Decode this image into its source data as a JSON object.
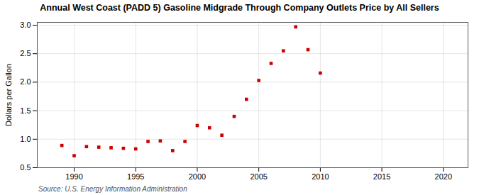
{
  "chart_data": {
    "type": "scatter",
    "title": "Annual West Coast (PADD 5) Gasoline Midgrade Through Company Outlets Price by All Sellers",
    "ylabel": "Dollars per Gallon",
    "source": "Source: U.S. Energy Information Administration",
    "color": "#cc0000",
    "marker": "square",
    "x": [
      1989,
      1990,
      1991,
      1992,
      1993,
      1994,
      1995,
      1996,
      1997,
      1998,
      1999,
      2000,
      2001,
      2002,
      2003,
      2004,
      2005,
      2006,
      2007,
      2008,
      2009,
      2010
    ],
    "values": [
      0.89,
      0.71,
      0.87,
      0.86,
      0.85,
      0.84,
      0.83,
      0.96,
      0.97,
      0.8,
      0.96,
      1.24,
      1.2,
      1.07,
      1.4,
      1.7,
      2.03,
      2.33,
      2.55,
      2.97,
      2.57,
      2.16
    ],
    "xlim": [
      1987,
      2022
    ],
    "ylim": [
      0.5,
      3.05
    ],
    "xticks": [
      1990,
      1995,
      2000,
      2005,
      2010,
      2015,
      2020
    ],
    "yticks": [
      0.5,
      {
        "value": 1,
        "label": "1.0"
      },
      1.5,
      {
        "value": 2,
        "label": "2.0"
      },
      2.5,
      {
        "value": 3,
        "label": "3.0"
      }
    ],
    "grid": true
  }
}
